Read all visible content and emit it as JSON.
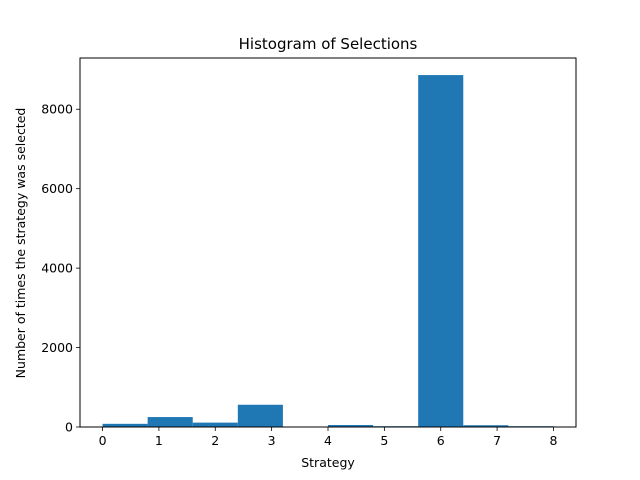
{
  "chart_data": {
    "type": "bar",
    "title": "Histogram of Selections",
    "xlabel": "Strategy",
    "ylabel": "Number of times the strategy was selected",
    "xlim": [
      -0.4,
      8.4
    ],
    "ylim": [
      0,
      9290
    ],
    "xticks": [
      "0",
      "1",
      "2",
      "3",
      "4",
      "5",
      "6",
      "7",
      "8"
    ],
    "yticks": [
      "0",
      "2000",
      "4000",
      "6000",
      "8000"
    ],
    "bin_width": 0.8,
    "bins": [
      {
        "start": 0.0,
        "value": 80
      },
      {
        "start": 0.8,
        "value": 250
      },
      {
        "start": 1.6,
        "value": 110
      },
      {
        "start": 2.4,
        "value": 560
      },
      {
        "start": 3.2,
        "value": 0
      },
      {
        "start": 4.0,
        "value": 50
      },
      {
        "start": 4.8,
        "value": 20
      },
      {
        "start": 5.6,
        "value": 8860
      },
      {
        "start": 6.4,
        "value": 45
      },
      {
        "start": 7.2,
        "value": 20
      }
    ],
    "bar_color": "#1f77b4",
    "grid": false,
    "legend": "none"
  }
}
